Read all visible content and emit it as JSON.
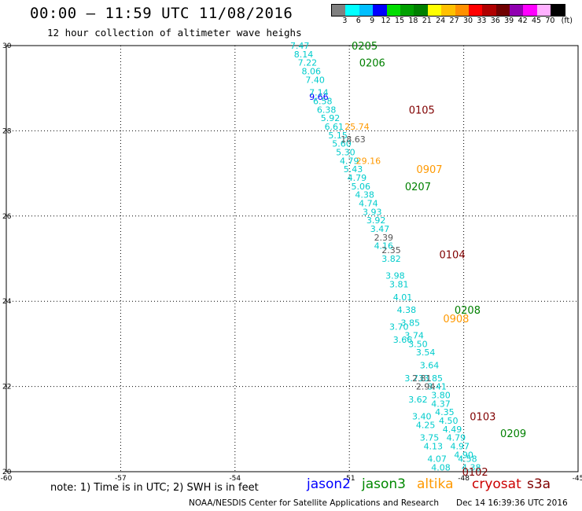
{
  "header": {
    "title": "00:00 – 11:59 UTC 11/08/2016",
    "subtitle": "12 hour collection of altimeter wave heighs"
  },
  "legend": {
    "unit": "(ft)",
    "colors": [
      "#808080",
      "#00ffff",
      "#00bfff",
      "#0000ff",
      "#00dd00",
      "#00a000",
      "#008000",
      "#ffff00",
      "#ffc000",
      "#ff9000",
      "#ff0000",
      "#b00000",
      "#700000",
      "#9000b0",
      "#ff00ff",
      "#ffb0ff",
      "#000000"
    ],
    "ticks": [
      "3",
      "6",
      "9",
      "12",
      "15",
      "18",
      "21",
      "24",
      "27",
      "30",
      "33",
      "36",
      "39",
      "42",
      "45",
      "70"
    ]
  },
  "chart_data": {
    "type": "scatter",
    "xlim": [
      -60,
      -45
    ],
    "ylim": [
      20,
      30
    ],
    "x_ticks": [
      "-60",
      "-57",
      "-54",
      "-51",
      "-48",
      "-45"
    ],
    "y_ticks": [
      "30",
      "28",
      "26",
      "24",
      "22",
      "20"
    ],
    "grid": true,
    "series": [
      {
        "name": "jason2",
        "color": "#0000ff",
        "points": [
          {
            "lon": -51.8,
            "lat": 28.8,
            "text": "9.66"
          }
        ]
      },
      {
        "name": "jason3",
        "color": "#00cccc",
        "points": [
          {
            "lon": -52.3,
            "lat": 30.0,
            "text": "7.47"
          },
          {
            "lon": -52.2,
            "lat": 29.8,
            "text": "8.14"
          },
          {
            "lon": -52.1,
            "lat": 29.6,
            "text": "7.22"
          },
          {
            "lon": -52.0,
            "lat": 29.4,
            "text": "8.06"
          },
          {
            "lon": -51.9,
            "lat": 29.2,
            "text": "7.40"
          },
          {
            "lon": -51.8,
            "lat": 28.9,
            "text": "7.14"
          },
          {
            "lon": -51.7,
            "lat": 28.7,
            "text": "6.58"
          },
          {
            "lon": -51.6,
            "lat": 28.5,
            "text": "6.38"
          },
          {
            "lon": -51.5,
            "lat": 28.3,
            "text": "5.92"
          },
          {
            "lon": -51.4,
            "lat": 28.1,
            "text": "6.61"
          },
          {
            "lon": -51.3,
            "lat": 27.9,
            "text": "5.15"
          },
          {
            "lon": -51.2,
            "lat": 27.7,
            "text": "5.60"
          },
          {
            "lon": -51.1,
            "lat": 27.5,
            "text": "5.30"
          },
          {
            "lon": -51.0,
            "lat": 27.3,
            "text": "4.79"
          },
          {
            "lon": -50.9,
            "lat": 27.1,
            "text": "5.43"
          },
          {
            "lon": -50.8,
            "lat": 26.9,
            "text": "4.79"
          },
          {
            "lon": -50.7,
            "lat": 26.7,
            "text": "5.06"
          },
          {
            "lon": -50.6,
            "lat": 26.5,
            "text": "4.38"
          },
          {
            "lon": -50.5,
            "lat": 26.3,
            "text": "4.74"
          },
          {
            "lon": -50.4,
            "lat": 26.1,
            "text": "3.93"
          },
          {
            "lon": -50.3,
            "lat": 25.9,
            "text": "3.92"
          },
          {
            "lon": -50.2,
            "lat": 25.7,
            "text": "3.47"
          },
          {
            "lon": -50.1,
            "lat": 25.3,
            "text": "4.16"
          },
          {
            "lon": -49.9,
            "lat": 25.0,
            "text": "3.82"
          },
          {
            "lon": -49.8,
            "lat": 24.6,
            "text": "3.98"
          },
          {
            "lon": -49.7,
            "lat": 24.4,
            "text": "3.81"
          },
          {
            "lon": -49.6,
            "lat": 24.1,
            "text": "4.01"
          },
          {
            "lon": -49.5,
            "lat": 23.8,
            "text": "4.38"
          },
          {
            "lon": -49.4,
            "lat": 23.5,
            "text": "3.85"
          },
          {
            "lon": -49.3,
            "lat": 23.2,
            "text": "3.74"
          },
          {
            "lon": -49.2,
            "lat": 23.0,
            "text": "3.50"
          },
          {
            "lon": -49.0,
            "lat": 22.8,
            "text": "3.54"
          },
          {
            "lon": -48.9,
            "lat": 22.5,
            "text": "3.64"
          },
          {
            "lon": -48.8,
            "lat": 22.2,
            "text": "3.85"
          },
          {
            "lon": -48.7,
            "lat": 22.0,
            "text": "3.41"
          },
          {
            "lon": -48.6,
            "lat": 21.8,
            "text": "3.80"
          },
          {
            "lon": -48.6,
            "lat": 21.6,
            "text": "4.37"
          },
          {
            "lon": -48.5,
            "lat": 21.4,
            "text": "4.35"
          },
          {
            "lon": -48.4,
            "lat": 21.2,
            "text": "4.50"
          },
          {
            "lon": -48.3,
            "lat": 21.0,
            "text": "4.49"
          },
          {
            "lon": -48.2,
            "lat": 20.8,
            "text": "4.79"
          },
          {
            "lon": -48.1,
            "lat": 20.6,
            "text": "4.97"
          },
          {
            "lon": -48.0,
            "lat": 20.4,
            "text": "4.90"
          },
          {
            "lon": -47.9,
            "lat": 20.3,
            "text": "4.58"
          },
          {
            "lon": -47.8,
            "lat": 20.1,
            "text": "4.38"
          },
          {
            "lon": -49.7,
            "lat": 23.4,
            "text": "3.70"
          },
          {
            "lon": -49.6,
            "lat": 23.1,
            "text": "3.66"
          },
          {
            "lon": -49.3,
            "lat": 22.2,
            "text": "3.73"
          },
          {
            "lon": -49.2,
            "lat": 21.7,
            "text": "3.62"
          },
          {
            "lon": -49.1,
            "lat": 21.3,
            "text": "3.40"
          },
          {
            "lon": -49.0,
            "lat": 21.1,
            "text": "4.25"
          },
          {
            "lon": -48.9,
            "lat": 20.8,
            "text": "3.75"
          },
          {
            "lon": -48.8,
            "lat": 20.6,
            "text": "4.13"
          },
          {
            "lon": -48.7,
            "lat": 20.3,
            "text": "4.07"
          },
          {
            "lon": -48.6,
            "lat": 20.1,
            "text": "4.08"
          }
        ]
      },
      {
        "name": "altika",
        "color": "#ff9900",
        "points": [
          {
            "lon": -50.8,
            "lat": 28.1,
            "text": "25.74"
          },
          {
            "lon": -50.5,
            "lat": 27.3,
            "text": "29.16"
          }
        ]
      },
      {
        "name": "cryosat",
        "color": "#cc0000",
        "points": []
      },
      {
        "name": "s3a",
        "color": "#800000",
        "points": []
      },
      {
        "name": "other",
        "color": "#555555",
        "points": [
          {
            "lon": -50.9,
            "lat": 27.8,
            "text": "18.63"
          },
          {
            "lon": -50.1,
            "lat": 25.5,
            "text": "2.39"
          },
          {
            "lon": -49.9,
            "lat": 25.2,
            "text": "2.35"
          },
          {
            "lon": -49.1,
            "lat": 22.2,
            "text": "2.81"
          },
          {
            "lon": -49.0,
            "lat": 22.0,
            "text": "2.94"
          }
        ]
      }
    ],
    "cycle_labels": [
      {
        "lon": -50.6,
        "lat": 30.0,
        "text": "0205",
        "color": "#008000"
      },
      {
        "lon": -50.4,
        "lat": 29.6,
        "text": "0206",
        "color": "#008000"
      },
      {
        "lon": -49.1,
        "lat": 28.5,
        "text": "0105",
        "color": "#800000"
      },
      {
        "lon": -48.9,
        "lat": 27.1,
        "text": "0907",
        "color": "#ff9900"
      },
      {
        "lon": -49.2,
        "lat": 26.7,
        "text": "0207",
        "color": "#008000"
      },
      {
        "lon": -48.3,
        "lat": 25.1,
        "text": "0104",
        "color": "#800000"
      },
      {
        "lon": -47.9,
        "lat": 23.8,
        "text": "0208",
        "color": "#008000"
      },
      {
        "lon": -48.2,
        "lat": 23.6,
        "text": "0908",
        "color": "#ff9900"
      },
      {
        "lon": -47.5,
        "lat": 21.3,
        "text": "0103",
        "color": "#800000"
      },
      {
        "lon": -46.7,
        "lat": 20.9,
        "text": "0209",
        "color": "#008000"
      },
      {
        "lon": -47.7,
        "lat": 20.0,
        "text": "0102",
        "color": "#800000"
      }
    ]
  },
  "footer": {
    "note": "note: 1) Time is in UTC; 2) SWH is in feet",
    "satellites": [
      {
        "label": "jason2",
        "color": "#0000ff"
      },
      {
        "label": "jason3",
        "color": "#008800"
      },
      {
        "label": "altika",
        "color": "#ff9900"
      },
      {
        "label": "cryosat",
        "color": "#cc0000"
      },
      {
        "label": "s3a",
        "color": "#800000"
      }
    ],
    "credit": "NOAA/NESDIS Center for Satellite Applications and Research",
    "timestamp": "Dec 14 16:39:36 UTC 2016"
  }
}
